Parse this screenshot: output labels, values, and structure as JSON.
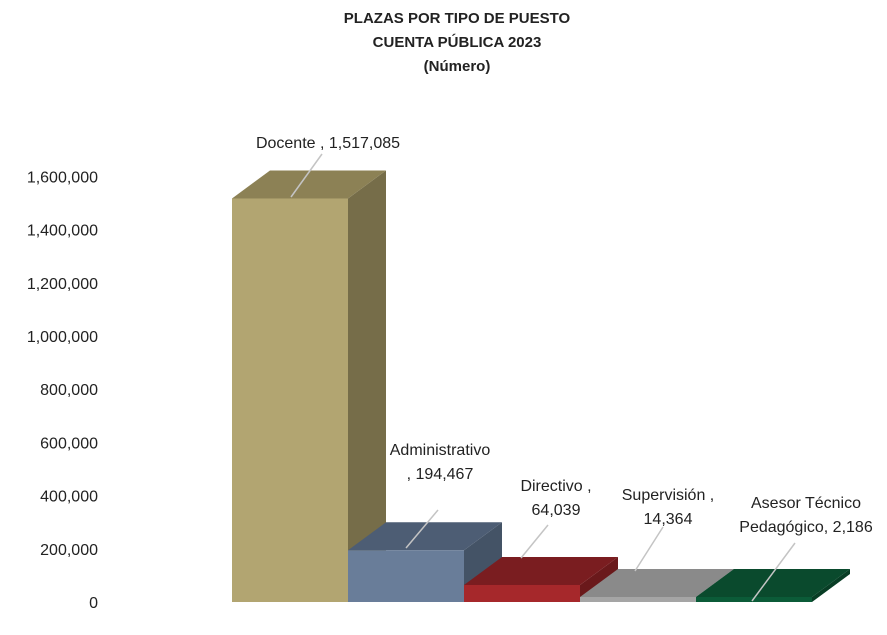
{
  "chart_data": {
    "type": "bar",
    "title_lines": [
      "PLAZAS POR TIPO DE PUESTO",
      "CUENTA PÚBLICA 2023",
      "(Número)"
    ],
    "categories": [
      "Docente",
      "Administrativo",
      "Directivo",
      "Supervisión",
      "Asesor Técnico Pedagógico"
    ],
    "values": [
      1517085,
      194467,
      64039,
      14364,
      2186
    ],
    "data_labels": [
      [
        "Docente , 1,517,085"
      ],
      [
        "Administrativo",
        ", 194,467"
      ],
      [
        "Directivo ,",
        "64,039"
      ],
      [
        "Supervisión ,",
        "14,364"
      ],
      [
        "Asesor Técnico",
        "Pedagógico, 2,186"
      ]
    ],
    "y_ticks": [
      0,
      200000,
      400000,
      600000,
      800000,
      1000000,
      1200000,
      1400000,
      1600000
    ],
    "y_tick_labels": [
      "0",
      "200,000",
      "400,000",
      "600,000",
      "800,000",
      "1,000,000",
      "1,200,000",
      "1,400,000",
      "1,600,000"
    ],
    "ylim": [
      0,
      1600000
    ],
    "grid": false,
    "legend": "none",
    "style": "3d-column",
    "colors": {
      "front": [
        "#b2a571",
        "#697d99",
        "#a6282b",
        "#a5a5a5",
        "#0b5b38"
      ],
      "top": [
        "#8c8155",
        "#4d5d74",
        "#7a1d20",
        "#8a8a8a",
        "#0a4a2d"
      ],
      "side": [
        "#766d49",
        "#445366",
        "#6a191b",
        "#7a7a7a",
        "#083d25"
      ],
      "leader": "#c4c4c4"
    }
  }
}
